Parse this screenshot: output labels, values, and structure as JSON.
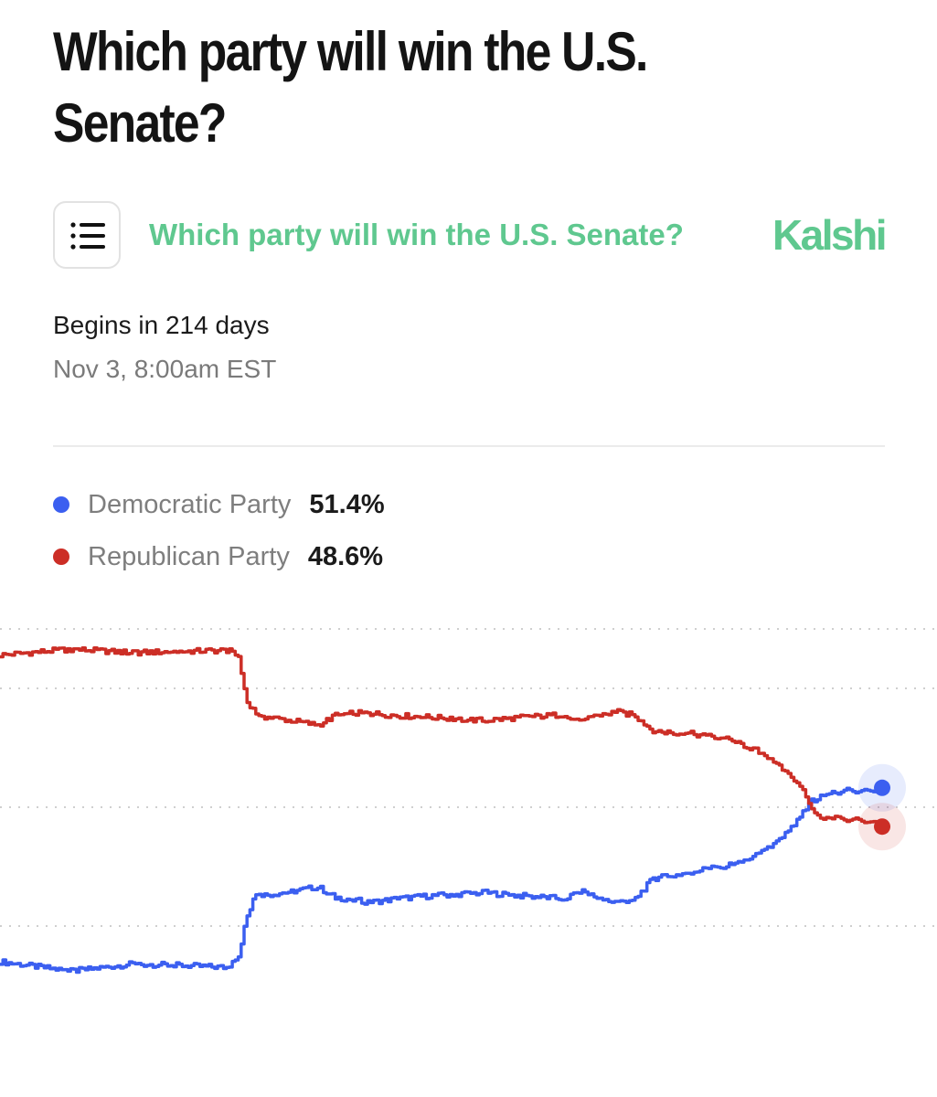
{
  "header": {
    "title": "Which party will win the U.S. Senate?"
  },
  "embed": {
    "menu_icon": "list-icon",
    "market_title": "Which party will win the U.S. Senate?",
    "brand": "Kalshi",
    "accent_color": "#5fc88f"
  },
  "event": {
    "begins": "Begins in 214 days",
    "date": "Nov 3, 8:00am EST"
  },
  "legend": [
    {
      "name": "Democratic Party",
      "value": "51.4%",
      "color": "#3b5ff0"
    },
    {
      "name": "Republican Party",
      "value": "48.6%",
      "color": "#cc2e26"
    }
  ],
  "chart_data": {
    "type": "line",
    "x": [
      0,
      8,
      15,
      20,
      26,
      27,
      28,
      29,
      30,
      33,
      36,
      38,
      40,
      42,
      45,
      48,
      50,
      52,
      55,
      58,
      60,
      64,
      66,
      68,
      70,
      72,
      74,
      76,
      78,
      80,
      82,
      84,
      86,
      87,
      88,
      89,
      90,
      91,
      92,
      93,
      94,
      95,
      96,
      97,
      98,
      99,
      100
    ],
    "ylim": [
      35,
      65
    ],
    "series": [
      {
        "name": "Democratic Party",
        "color": "#3b5ff0",
        "values": [
          37.0,
          36.2,
          36.8,
          36.7,
          36.5,
          37.5,
          41.0,
          42.7,
          42.6,
          42.9,
          43.3,
          42.4,
          42.2,
          42.0,
          42.3,
          42.5,
          42.6,
          42.7,
          42.8,
          42.6,
          42.5,
          42.3,
          43.0,
          42.2,
          42.0,
          42.3,
          44.0,
          44.2,
          44.5,
          44.8,
          45.0,
          45.4,
          46.0,
          46.5,
          47.0,
          47.8,
          48.5,
          49.5,
          50.5,
          51.0,
          51.3,
          51.1,
          51.6,
          51.2,
          51.5,
          51.3,
          51.4
        ]
      },
      {
        "name": "Republican Party",
        "color": "#cc2e26",
        "values": [
          62.8,
          63.3,
          63.0,
          63.1,
          63.2,
          62.5,
          58.8,
          57.8,
          57.6,
          57.3,
          56.9,
          57.7,
          57.9,
          57.9,
          57.7,
          57.6,
          57.5,
          57.4,
          57.3,
          57.5,
          57.6,
          57.8,
          57.2,
          57.8,
          58.0,
          57.7,
          56.4,
          56.3,
          56.2,
          56.0,
          55.8,
          55.3,
          54.7,
          54.2,
          53.6,
          53.0,
          52.3,
          51.3,
          49.8,
          49.2,
          49.0,
          49.2,
          48.8,
          49.1,
          48.7,
          48.8,
          48.6
        ]
      }
    ],
    "grid": true,
    "legend_position": "top-left",
    "xlabel": "",
    "ylabel": ""
  }
}
